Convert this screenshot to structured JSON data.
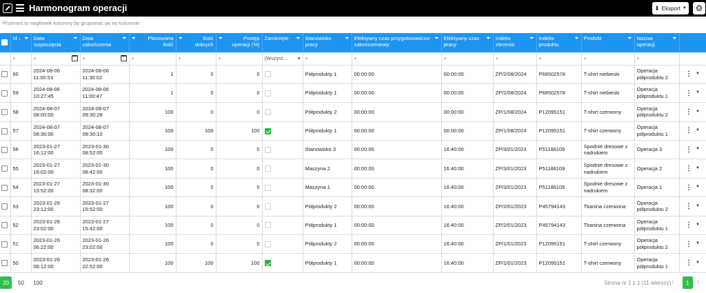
{
  "app": {
    "title": "Harmonogram operacji",
    "export_label": "Eksport",
    "icons": {
      "logo": "arrow-box-icon",
      "menu": "hamburger-icon",
      "export": "download-icon",
      "settings": "gear-icon"
    }
  },
  "group_panel": {
    "hint": "Przenieś tu nagłówek kolumny by grupować po tej kolumnie"
  },
  "columns": [
    {
      "key": "id",
      "label": "Id",
      "sort": "↓",
      "align": "l"
    },
    {
      "key": "ds",
      "label": "Data rozpoczęcia",
      "align": "l"
    },
    {
      "key": "de",
      "label": "Data zakończenia",
      "align": "l"
    },
    {
      "key": "plan",
      "label": "Planowana ilość",
      "align": "r"
    },
    {
      "key": "dob",
      "label": "Ilość dobrych",
      "align": "r"
    },
    {
      "key": "post",
      "label": "Postęp operacji (%)",
      "align": "r"
    },
    {
      "key": "zam",
      "label": "Zamknięte",
      "align": "l"
    },
    {
      "key": "stan",
      "label": "Stanowisko pracy",
      "align": "l"
    },
    {
      "key": "ecz",
      "label": "Efektywny czas przygotowawczo-zakończeniowy",
      "align": "l"
    },
    {
      "key": "ecp",
      "label": "Efektywny czas pracy",
      "align": "l"
    },
    {
      "key": "izl",
      "label": "Indeks zlecenia",
      "align": "l"
    },
    {
      "key": "ipr",
      "label": "Indeks produktu",
      "align": "l"
    },
    {
      "key": "prod",
      "label": "Produkt",
      "align": "l"
    },
    {
      "key": "naz",
      "label": "Nazwa operacji",
      "align": "l"
    }
  ],
  "filter": {
    "closed_select": "(Wszyst…"
  },
  "rows": [
    {
      "id": "60",
      "ds": "2024-08-06 11:00:53",
      "de": "2024-08-06 11:30:02",
      "plan": "1",
      "dob": "0",
      "post": "0",
      "closed": false,
      "stan": "Półprodukty 1",
      "ecz": "00:00:00",
      "ecp": "00:00:00",
      "izl": "ZP/2/08/2024",
      "ipr": "P68502578",
      "prod": "T-shirt niebieski",
      "naz": "Operacja półproduktu 2"
    },
    {
      "id": "59",
      "ds": "2024-08-06 10:27:45",
      "de": "2024-08-06 11:00:47",
      "plan": "1",
      "dob": "0",
      "post": "0",
      "closed": false,
      "stan": "Półprodukty 1",
      "ecz": "00:00:00",
      "ecp": "00:00:00",
      "izl": "ZP/2/08/2024",
      "ipr": "P68502578",
      "prod": "T-shirt niebieski",
      "naz": "Operacja półproduktu 1"
    },
    {
      "id": "58",
      "ds": "2024-08-07 08:00:00",
      "de": "2024-08-07 09:30:28",
      "plan": "100",
      "dob": "0",
      "post": "0",
      "closed": false,
      "stan": "Półprodukty 2",
      "ecz": "00:00:00",
      "ecp": "00:00:00",
      "izl": "ZP/1/08/2024",
      "ipr": "P12095151",
      "prod": "T-shirt czerwony",
      "naz": "Operacja półproduktu 2"
    },
    {
      "id": "57",
      "ds": "2024-08-07 06:30:00",
      "de": "2024-08-07 09:30:10",
      "plan": "100",
      "dob": "100",
      "post": "100",
      "closed": true,
      "stan": "Półprodukty 1",
      "ecz": "00:00:00",
      "ecp": "00:00:00",
      "izl": "ZP/1/08/2024",
      "ipr": "P12095151",
      "prod": "T-shirt czerwony",
      "naz": "Operacja półproduktu 1"
    },
    {
      "id": "56",
      "ds": "2023-01-27 16:12:00",
      "de": "2023-01-30 08:52:00",
      "plan": "100",
      "dob": "0",
      "post": "0",
      "closed": false,
      "stan": "Stanowisko 3",
      "ecz": "00:00:00",
      "ecp": "16:40:00",
      "izl": "ZP/3/01/2023",
      "ipr": "P51186109",
      "prod": "Spodnie dresowe z nadrukiem",
      "naz": "Operacja 3"
    },
    {
      "id": "55",
      "ds": "2023-01-27 16:02:00",
      "de": "2023-01-30 08:42:00",
      "plan": "100",
      "dob": "0",
      "post": "0",
      "closed": false,
      "stan": "Maszyna 2",
      "ecz": "00:00:00",
      "ecp": "16:40:00",
      "izl": "ZP/3/01/2023",
      "ipr": "P51186109",
      "prod": "Spodnie dresowe z nadrukiem",
      "naz": "Operacja 2"
    },
    {
      "id": "54",
      "ds": "2023-01-27 15:52:00",
      "de": "2023-01-30 08:32:00",
      "plan": "100",
      "dob": "0",
      "post": "0",
      "closed": false,
      "stan": "Maszyna 1",
      "ecz": "00:00:00",
      "ecp": "16:40:00",
      "izl": "ZP/3/01/2023",
      "ipr": "P51186109",
      "prod": "Spodnie dresowe z nadrukiem",
      "naz": "Operacja 1"
    },
    {
      "id": "53",
      "ds": "2023-01-26 23:12:00",
      "de": "2023-01-27 15:52:00",
      "plan": "100",
      "dob": "0",
      "post": "0",
      "closed": false,
      "stan": "Półprodukty 2",
      "ecz": "00:00:00",
      "ecp": "16:40:00",
      "izl": "ZP/2/01/2023",
      "ipr": "P45794143",
      "prod": "Tkanina czerwona",
      "naz": "Operacja półproduktu 2"
    },
    {
      "id": "52",
      "ds": "2023-01-26 23:02:00",
      "de": "2023-01-27 15:42:00",
      "plan": "100",
      "dob": "0",
      "post": "0",
      "closed": false,
      "stan": "Półprodukty 1",
      "ecz": "00:00:00",
      "ecp": "16:40:00",
      "izl": "ZP/2/01/2023",
      "ipr": "P45794143",
      "prod": "Tkanina czerwona",
      "naz": "Operacja półproduktu 1"
    },
    {
      "id": "51",
      "ds": "2023-01-26 06:22:00",
      "de": "2023-01-26 23:02:00",
      "plan": "100",
      "dob": "0",
      "post": "0",
      "closed": false,
      "stan": "Półprodukty 2",
      "ecz": "00:00:00",
      "ecp": "16:40:00",
      "izl": "ZP/1/01/2023",
      "ipr": "P12095151",
      "prod": "T-shirt czerwony",
      "naz": "Operacja półproduktu 2"
    },
    {
      "id": "50",
      "ds": "2023-01-26 06:12:00",
      "de": "2023-01-26 22:52:00",
      "plan": "100",
      "dob": "100",
      "post": "100",
      "closed": true,
      "stan": "Półprodukty 1",
      "ecz": "00:00:00",
      "ecp": "16:40:00",
      "izl": "ZP/1/01/2023",
      "ipr": "P12095151",
      "prod": "T-shirt czerwony",
      "naz": "Operacja półproduktu 1"
    }
  ],
  "pager": {
    "sizes": [
      "20",
      "50",
      "100"
    ],
    "active_size": "20",
    "info": "Strona nr 1 z 1 (11 wierszy)",
    "current_page": "1"
  },
  "colors": {
    "header_blue": "#1e94f1",
    "accent_green": "#2fbf4e",
    "topbar": "#000000"
  }
}
